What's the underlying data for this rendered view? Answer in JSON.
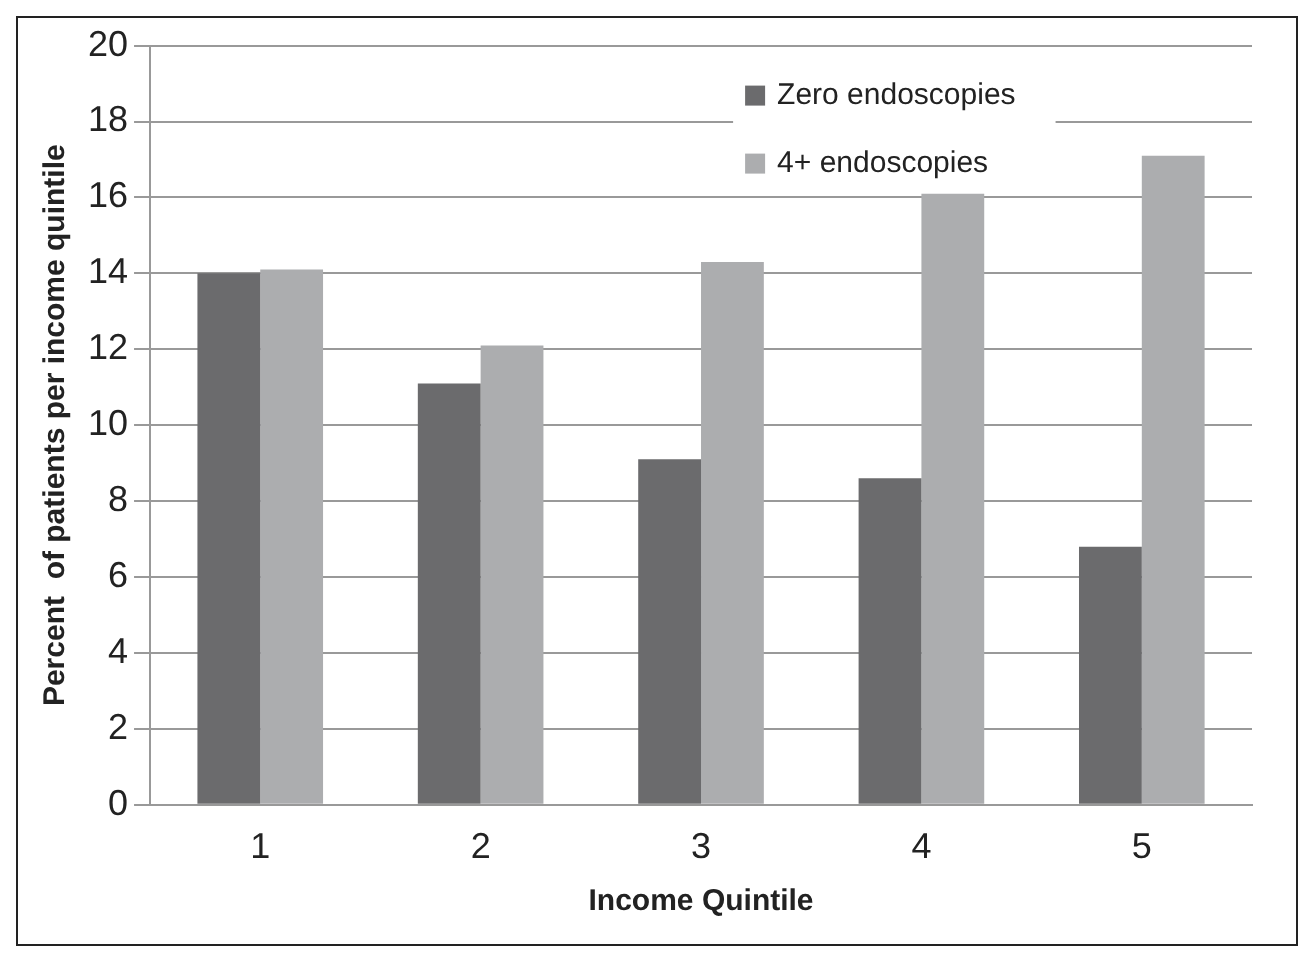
{
  "chart_data": {
    "type": "bar",
    "xlabel": "Income Quintile",
    "ylabel": "Percent  of patients per income quintile",
    "categories": [
      "1",
      "2",
      "3",
      "4",
      "5"
    ],
    "series": [
      {
        "name": "Zero endoscopies",
        "color": "#6b6b6d",
        "values": [
          14.0,
          11.1,
          9.1,
          8.6,
          6.8
        ]
      },
      {
        "name": "4+ endoscopies",
        "color": "#acadaf",
        "values": [
          14.1,
          12.1,
          14.3,
          16.1,
          17.1
        ]
      }
    ],
    "ylim": [
      0,
      20
    ],
    "yticks": [
      0,
      2,
      4,
      6,
      8,
      10,
      12,
      14,
      16,
      18,
      20
    ],
    "grid": "y",
    "legend": "top right"
  }
}
